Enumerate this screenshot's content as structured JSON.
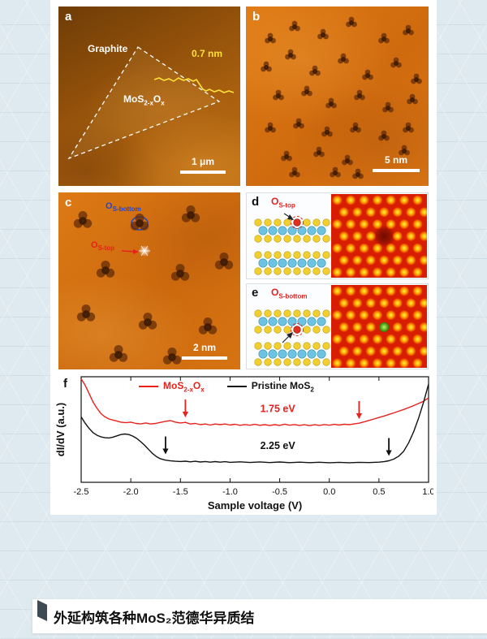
{
  "colors": {
    "page_background": "#dfe9f0",
    "accent_red": "#e8211d",
    "defect_blue": "#2746c8",
    "stm_orange": "#d2700f",
    "sim_background_red": "#d81e00",
    "profile_yellow": "#ffe13a"
  },
  "caption": {
    "text": "外延构筑各种MoS₂范德华异质结"
  },
  "figure": {
    "panel_a": {
      "label": "a",
      "substrate": "Graphite",
      "step_height": "0.7 nm",
      "material": {
        "base": "MoS",
        "sub1": "2-x",
        "mid": "O",
        "sub2": "x"
      },
      "scalebar": "1 μm"
    },
    "panel_b": {
      "label": "b",
      "scalebar": "5 nm"
    },
    "panel_c": {
      "label": "c",
      "defect_bottom": {
        "base": "O",
        "sub": "S-bottom"
      },
      "defect_top": {
        "base": "O",
        "sub": "S-top"
      },
      "scalebar": "2 nm"
    },
    "panel_d": {
      "label": "d",
      "title": {
        "base": "O",
        "sub": "S-top"
      }
    },
    "panel_e": {
      "label": "e",
      "title": {
        "base": "O",
        "sub": "S-bottom"
      }
    },
    "panel_f": {
      "label": "f"
    }
  },
  "chart_data": {
    "type": "line",
    "title": "",
    "xlabel": "Sample voltage (V)",
    "ylabel": "dI/dV (a.u.)",
    "xlim": [
      -2.5,
      1.0
    ],
    "ylim": [
      0,
      1
    ],
    "y_units": "arbitrary (normalized)",
    "grid": false,
    "x_ticks": [
      -2.5,
      -2.0,
      -1.5,
      -1.0,
      -0.5,
      0.0,
      0.5,
      1.0
    ],
    "series": [
      {
        "name": "MoS2-xOx",
        "color": "#e8211d",
        "band_gap": "1.75 eV",
        "points": [
          [
            -2.5,
            0.98
          ],
          [
            -2.46,
            0.92
          ],
          [
            -2.42,
            0.84
          ],
          [
            -2.38,
            0.76
          ],
          [
            -2.34,
            0.7
          ],
          [
            -2.3,
            0.65
          ],
          [
            -2.26,
            0.62
          ],
          [
            -2.22,
            0.6
          ],
          [
            -2.18,
            0.59
          ],
          [
            -2.14,
            0.58
          ],
          [
            -2.1,
            0.57
          ],
          [
            -2.05,
            0.565
          ],
          [
            -2.0,
            0.57
          ],
          [
            -1.95,
            0.558
          ],
          [
            -1.9,
            0.553
          ],
          [
            -1.85,
            0.562
          ],
          [
            -1.8,
            0.552
          ],
          [
            -1.75,
            0.558
          ],
          [
            -1.7,
            0.568
          ],
          [
            -1.65,
            0.578
          ],
          [
            -1.6,
            0.585
          ],
          [
            -1.55,
            0.57
          ],
          [
            -1.5,
            0.562
          ],
          [
            -1.45,
            0.568
          ],
          [
            -1.4,
            0.552
          ],
          [
            -1.35,
            0.558
          ],
          [
            -1.3,
            0.546
          ],
          [
            -1.25,
            0.552
          ],
          [
            -1.2,
            0.542
          ],
          [
            -1.15,
            0.552
          ],
          [
            -1.1,
            0.546
          ],
          [
            -1.05,
            0.552
          ],
          [
            -1.0,
            0.542
          ],
          [
            -0.95,
            0.55
          ],
          [
            -0.9,
            0.54
          ],
          [
            -0.85,
            0.547
          ],
          [
            -0.8,
            0.541
          ],
          [
            -0.75,
            0.549
          ],
          [
            -0.7,
            0.54
          ],
          [
            -0.65,
            0.546
          ],
          [
            -0.6,
            0.538
          ],
          [
            -0.55,
            0.546
          ],
          [
            -0.5,
            0.539
          ],
          [
            -0.45,
            0.551
          ],
          [
            -0.4,
            0.541
          ],
          [
            -0.35,
            0.547
          ],
          [
            -0.3,
            0.539
          ],
          [
            -0.25,
            0.545
          ],
          [
            -0.2,
            0.537
          ],
          [
            -0.15,
            0.545
          ],
          [
            -0.1,
            0.539
          ],
          [
            -0.05,
            0.547
          ],
          [
            0.0,
            0.541
          ],
          [
            0.05,
            0.549
          ],
          [
            0.1,
            0.542
          ],
          [
            0.15,
            0.55
          ],
          [
            0.2,
            0.546
          ],
          [
            0.25,
            0.553
          ],
          [
            0.3,
            0.56
          ],
          [
            0.35,
            0.572
          ],
          [
            0.4,
            0.586
          ],
          [
            0.45,
            0.6
          ],
          [
            0.5,
            0.614
          ],
          [
            0.55,
            0.628
          ],
          [
            0.6,
            0.643
          ],
          [
            0.65,
            0.658
          ],
          [
            0.7,
            0.674
          ],
          [
            0.75,
            0.69
          ],
          [
            0.8,
            0.708
          ],
          [
            0.85,
            0.727
          ],
          [
            0.9,
            0.747
          ],
          [
            0.95,
            0.768
          ],
          [
            1.0,
            0.8
          ]
        ]
      },
      {
        "name": "Pristine MoS2",
        "color": "#111111",
        "band_gap": "2.25 eV",
        "points": [
          [
            -2.5,
            0.62
          ],
          [
            -2.46,
            0.56
          ],
          [
            -2.42,
            0.51
          ],
          [
            -2.38,
            0.47
          ],
          [
            -2.34,
            0.445
          ],
          [
            -2.3,
            0.43
          ],
          [
            -2.26,
            0.422
          ],
          [
            -2.22,
            0.42
          ],
          [
            -2.18,
            0.428
          ],
          [
            -2.14,
            0.44
          ],
          [
            -2.1,
            0.452
          ],
          [
            -2.06,
            0.458
          ],
          [
            -2.02,
            0.452
          ],
          [
            -1.98,
            0.438
          ],
          [
            -1.94,
            0.415
          ],
          [
            -1.9,
            0.385
          ],
          [
            -1.86,
            0.35
          ],
          [
            -1.82,
            0.31
          ],
          [
            -1.78,
            0.272
          ],
          [
            -1.74,
            0.242
          ],
          [
            -1.7,
            0.222
          ],
          [
            -1.65,
            0.21
          ],
          [
            -1.6,
            0.203
          ],
          [
            -1.55,
            0.199
          ],
          [
            -1.5,
            0.197
          ],
          [
            -1.45,
            0.2
          ],
          [
            -1.4,
            0.194
          ],
          [
            -1.35,
            0.199
          ],
          [
            -1.3,
            0.192
          ],
          [
            -1.25,
            0.197
          ],
          [
            -1.2,
            0.191
          ],
          [
            -1.15,
            0.196
          ],
          [
            -1.1,
            0.191
          ],
          [
            -1.05,
            0.195
          ],
          [
            -1.0,
            0.189
          ],
          [
            -0.9,
            0.194
          ],
          [
            -0.8,
            0.188
          ],
          [
            -0.7,
            0.193
          ],
          [
            -0.6,
            0.187
          ],
          [
            -0.5,
            0.192
          ],
          [
            -0.4,
            0.186
          ],
          [
            -0.3,
            0.191
          ],
          [
            -0.2,
            0.186
          ],
          [
            -0.1,
            0.19
          ],
          [
            0.0,
            0.185
          ],
          [
            0.1,
            0.189
          ],
          [
            0.2,
            0.185
          ],
          [
            0.3,
            0.189
          ],
          [
            0.4,
            0.187
          ],
          [
            0.5,
            0.191
          ],
          [
            0.55,
            0.195
          ],
          [
            0.6,
            0.204
          ],
          [
            0.65,
            0.22
          ],
          [
            0.7,
            0.248
          ],
          [
            0.75,
            0.295
          ],
          [
            0.8,
            0.375
          ],
          [
            0.85,
            0.48
          ],
          [
            0.9,
            0.61
          ],
          [
            0.95,
            0.76
          ],
          [
            1.0,
            0.93
          ]
        ]
      }
    ],
    "legend": [
      {
        "color": "#e8211d",
        "parts": {
          "base": "MoS",
          "sub1": "2-x",
          "mid": "O",
          "sub2": "x"
        }
      },
      {
        "color": "#111111",
        "parts": {
          "base": "Pristine MoS",
          "sub1": "2"
        }
      }
    ],
    "arrows": [
      {
        "x": -1.45,
        "tip_y": 0.615,
        "color": "#e8211d"
      },
      {
        "x": 0.3,
        "tip_y": 0.6,
        "color": "#e8211d"
      },
      {
        "x": -1.65,
        "tip_y": 0.265,
        "color": "#111111"
      },
      {
        "x": 0.6,
        "tip_y": 0.25,
        "color": "#111111"
      }
    ],
    "gap_labels": [
      {
        "text": "1.75 eV",
        "x": -0.52,
        "y": 0.665,
        "color": "#e8211d"
      },
      {
        "text": "2.25 eV",
        "x": -0.52,
        "y": 0.315,
        "color": "#111111"
      }
    ],
    "legend_position": "top-center"
  }
}
